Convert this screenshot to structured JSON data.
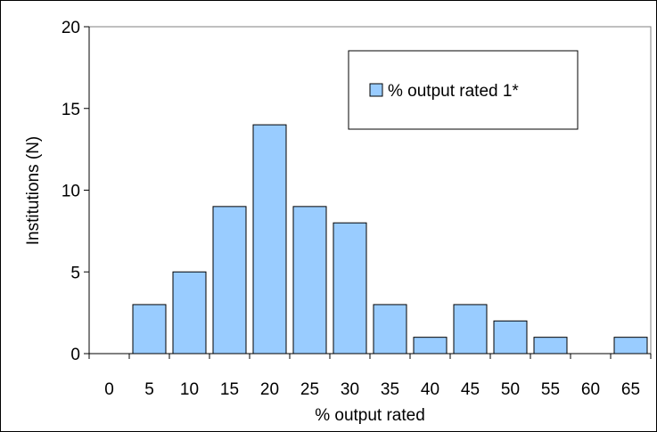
{
  "chart_data": {
    "type": "bar",
    "categories": [
      "0",
      "5",
      "10",
      "15",
      "20",
      "25",
      "30",
      "35",
      "40",
      "45",
      "50",
      "55",
      "60",
      "65"
    ],
    "series": [
      {
        "name": "% output rated 1*",
        "values": [
          0,
          3,
          5,
          9,
          14,
          9,
          8,
          3,
          1,
          3,
          2,
          1,
          0,
          1
        ],
        "color": "#99ccff"
      }
    ],
    "title": "",
    "xlabel": "% output rated",
    "ylabel": "Institutions (N)",
    "ylim": [
      0,
      20
    ],
    "yticks": [
      0,
      5,
      10,
      15,
      20
    ],
    "grid": false,
    "legend_position": "top-right"
  }
}
